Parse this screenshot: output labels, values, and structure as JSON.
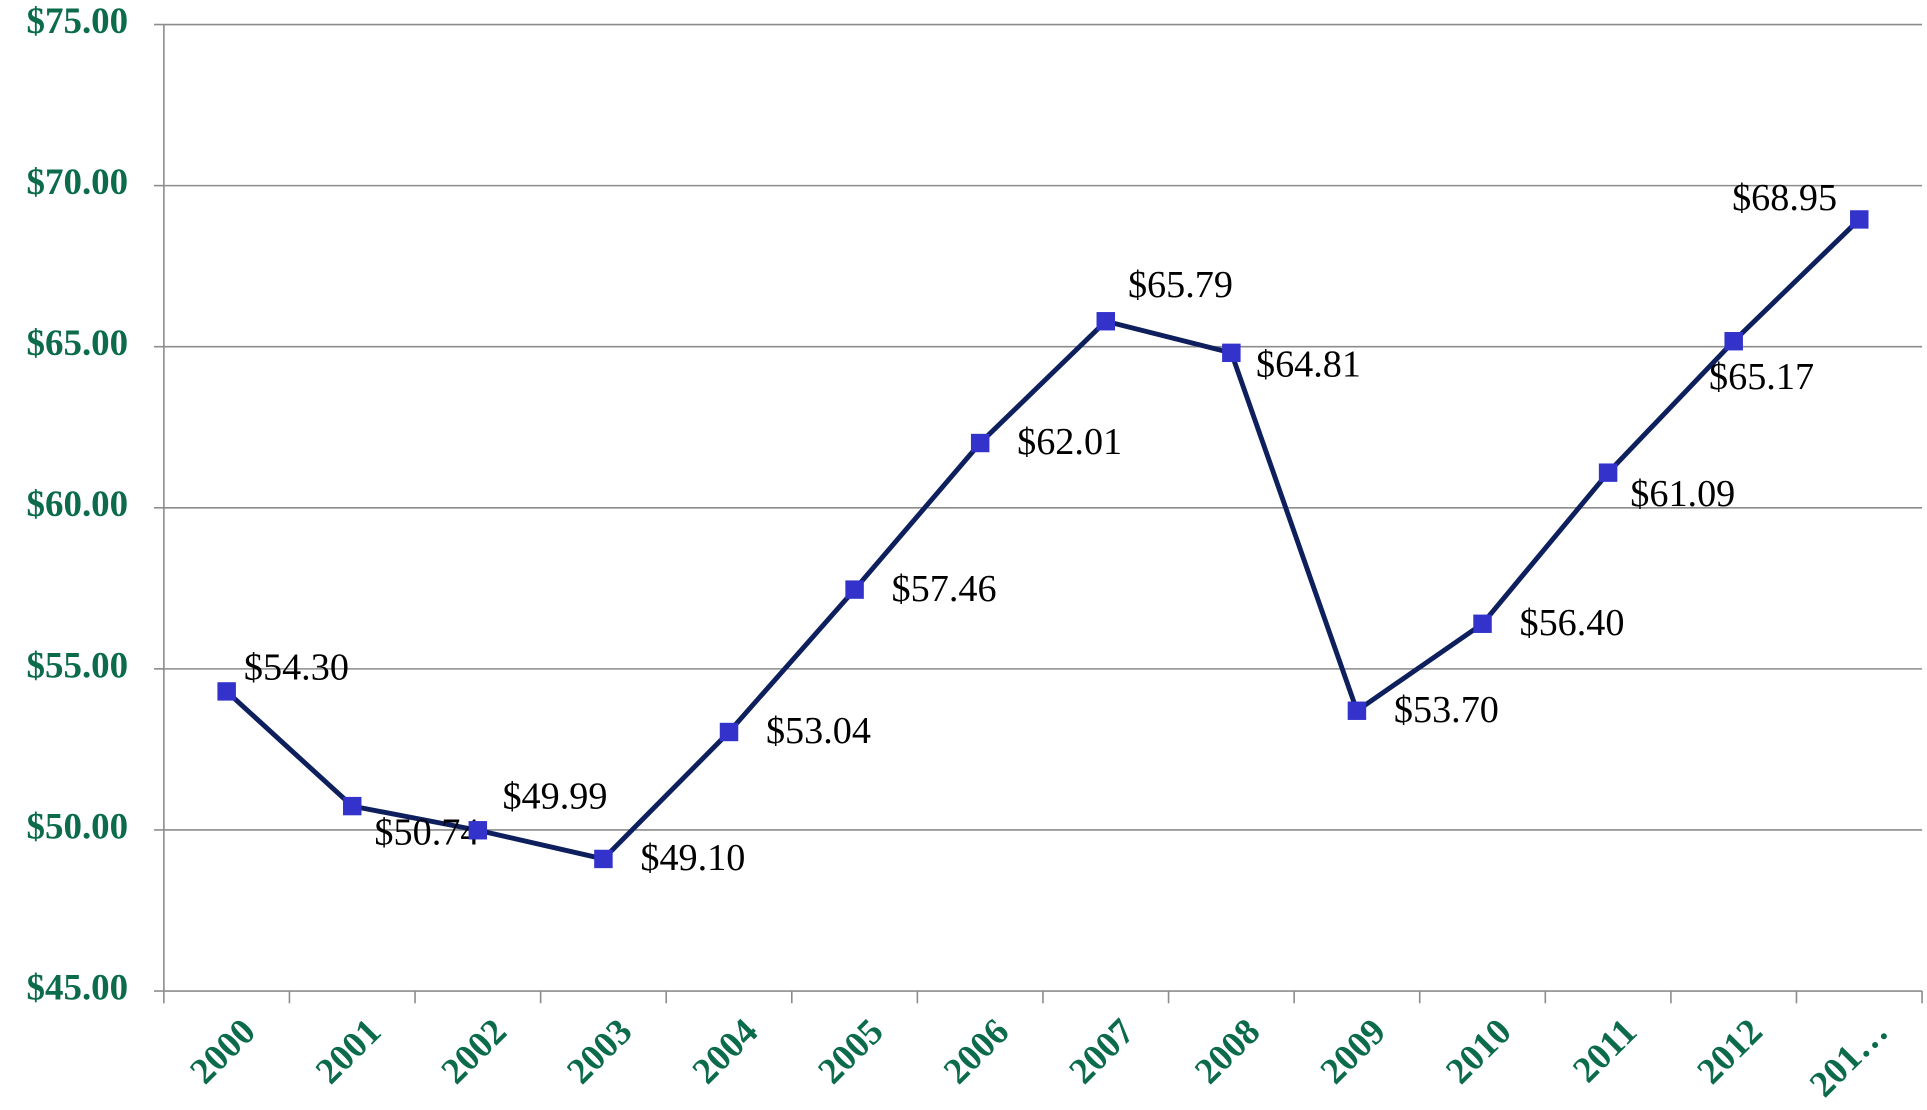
{
  "chart_data": {
    "type": "line",
    "categories": [
      "2000",
      "2001",
      "2002",
      "2003",
      "2004",
      "2005",
      "2006",
      "2007",
      "2008",
      "2009",
      "2010",
      "2011",
      "2012",
      "201…"
    ],
    "series": [
      {
        "color": "#0d1f5c",
        "marker_color": "#3333cc",
        "values": [
          54.3,
          50.74,
          49.99,
          49.1,
          53.04,
          57.46,
          62.01,
          65.79,
          64.81,
          53.7,
          56.4,
          61.09,
          65.17,
          68.95
        ],
        "value_labels": [
          "$54.30",
          "$50.74",
          "$49.99",
          "$49.10",
          "$53.04",
          "$57.46",
          "$62.01",
          "$65.79",
          "$64.81",
          "$53.70",
          "$56.40",
          "$61.09",
          "$65.17",
          "$68.95"
        ]
      }
    ],
    "ylim": [
      45,
      75
    ],
    "yticks": [
      {
        "value": 45,
        "label": "$45.00"
      },
      {
        "value": 50,
        "label": "$50.00"
      },
      {
        "value": 55,
        "label": "$55.00"
      },
      {
        "value": 60,
        "label": "$60.00"
      },
      {
        "value": 65,
        "label": "$65.00"
      },
      {
        "value": 70,
        "label": "$70.00"
      },
      {
        "value": 75,
        "label": "$75.00"
      }
    ],
    "grid": true
  }
}
